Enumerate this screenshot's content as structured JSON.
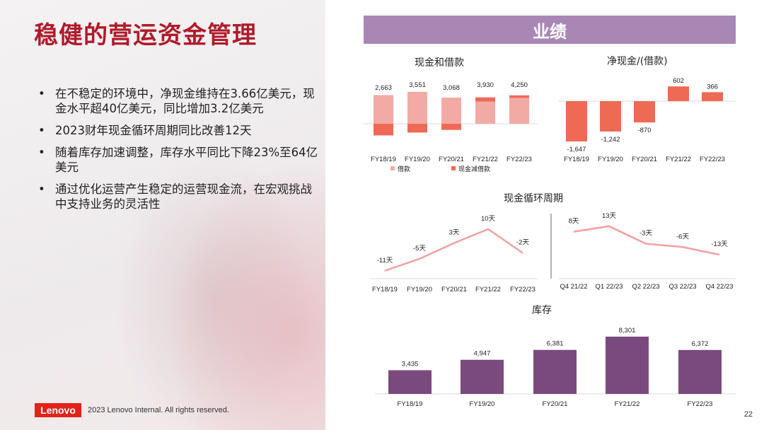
{
  "title": "稳健的营运资金管理",
  "bullets": [
    "在不稳定的环境中，净现金维持在3.66亿美元，现金水平超40亿美元，同比增加3.2亿美元",
    "2023财年现金循环周期同比改善12天",
    "随着库存加速调整，库存水平同比下降23%至64亿美元",
    "通过优化运营产生稳定的运营现金流，在宏观挑战中支持业务的灵活性"
  ],
  "bullet_symbol": "•",
  "footer": {
    "logo": "Lenovo",
    "copyright": "2023 Lenovo Internal. All rights reserved.",
    "page": "22"
  },
  "section_header": "业绩",
  "colors": {
    "brand_red": "#b01a2a",
    "banner": "#a987b5",
    "borrow": "#f2aaa5",
    "cash_minus_debt": "#ee6a55",
    "line": "#f0a0a0",
    "inventory": "#7a4a7e"
  },
  "chart_data": [
    {
      "id": "cash_borrow",
      "type": "bar",
      "title": "现金和借款",
      "categories": [
        "FY18/19",
        "FY19/20",
        "FY20/21",
        "FY21/22",
        "FY22/23"
      ],
      "totals": [
        2663,
        3551,
        3068,
        3930,
        4250
      ],
      "total_labels": [
        "2,663",
        "3,551",
        "3,068",
        "3,930",
        "4,250"
      ],
      "series": [
        {
          "name": "借款",
          "values": [
            4310,
            4793,
            3938,
            3328,
            3884
          ]
        },
        {
          "name": "现金减借款",
          "values": [
            -1647,
            -1242,
            -870,
            602,
            366
          ]
        }
      ],
      "legend": [
        "借款",
        "现金减借款"
      ]
    },
    {
      "id": "net_cash",
      "type": "bar",
      "title": "净现金/(借款)",
      "categories": [
        "FY18/19",
        "FY19/20",
        "FY20/21",
        "FY21/22",
        "FY22/23"
      ],
      "values": [
        -1647,
        -1242,
        -870,
        602,
        366
      ],
      "labels": [
        "-1,647",
        "-1,242",
        "-870",
        "602",
        "366"
      ]
    },
    {
      "id": "ccc_annual",
      "type": "line",
      "title": "现金循环周期",
      "categories": [
        "FY18/19",
        "FY19/20",
        "FY20/21",
        "FY21/22",
        "FY22/23"
      ],
      "values": [
        -11,
        -5,
        3,
        10,
        -2
      ],
      "labels": [
        "-11天",
        "-5天",
        "3天",
        "10天",
        "-2天"
      ]
    },
    {
      "id": "ccc_quarterly",
      "type": "line",
      "categories": [
        "Q4 21/22",
        "Q1 22/23",
        "Q2 22/23",
        "Q3 22/23",
        "Q4 22/23"
      ],
      "values": [
        8,
        13,
        -3,
        -6,
        -13
      ],
      "labels": [
        "8天",
        "13天",
        "-3天",
        "-6天",
        "-13天"
      ]
    },
    {
      "id": "inventory",
      "type": "bar",
      "title": "库存",
      "categories": [
        "FY18/19",
        "FY19/20",
        "FY20/21",
        "FY21/22",
        "FY22/23"
      ],
      "values": [
        3435,
        4947,
        6381,
        8301,
        6372
      ],
      "labels": [
        "3,435",
        "4,947",
        "6,381",
        "8,301",
        "6,372"
      ]
    }
  ]
}
